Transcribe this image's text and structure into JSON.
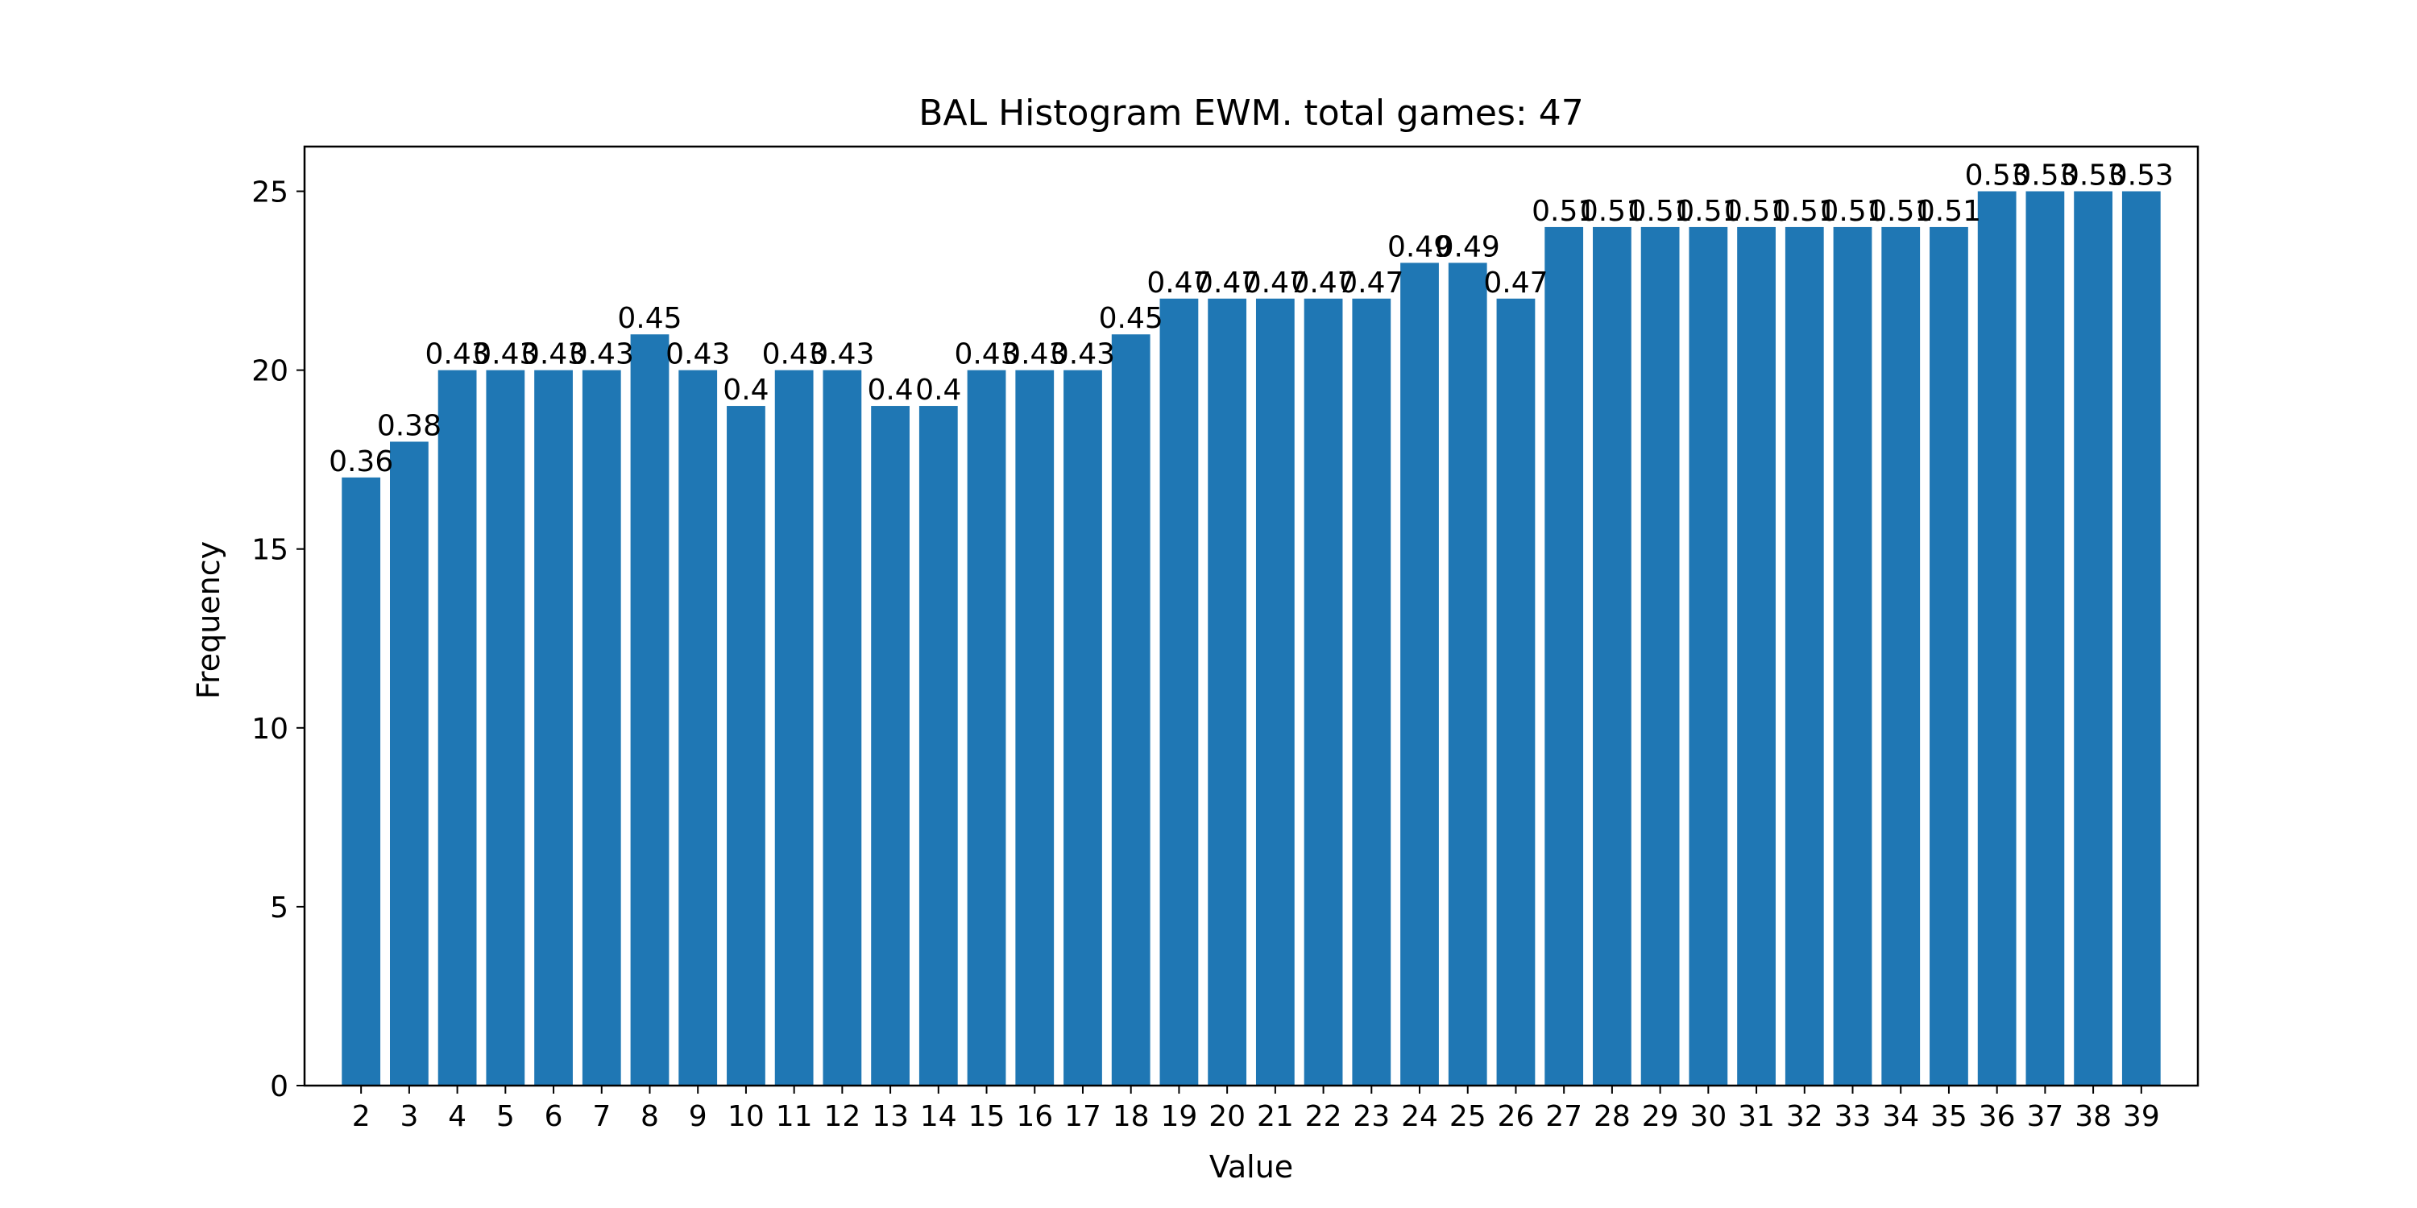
{
  "chart_data": {
    "type": "bar",
    "title": "BAL Histogram EWM. total games: 47",
    "xlabel": "Value",
    "ylabel": "Frequency",
    "categories": [
      "2",
      "3",
      "4",
      "5",
      "6",
      "7",
      "8",
      "9",
      "10",
      "11",
      "12",
      "13",
      "14",
      "15",
      "16",
      "17",
      "18",
      "19",
      "20",
      "21",
      "22",
      "23",
      "24",
      "25",
      "26",
      "27",
      "28",
      "29",
      "30",
      "31",
      "32",
      "33",
      "34",
      "35",
      "36",
      "37",
      "38",
      "39"
    ],
    "values": [
      17,
      18,
      20,
      20,
      20,
      20,
      21,
      20,
      19,
      20,
      20,
      19,
      19,
      20,
      20,
      20,
      21,
      22,
      22,
      22,
      22,
      22,
      23,
      23,
      22,
      24,
      24,
      24,
      24,
      24,
      24,
      24,
      24,
      24,
      25,
      25,
      25,
      25
    ],
    "bar_labels": [
      "0.36",
      "0.38",
      "0.43",
      "0.43",
      "0.43",
      "0.43",
      "0.45",
      "0.43",
      "0.4",
      "0.43",
      "0.43",
      "0.4",
      "0.4",
      "0.43",
      "0.43",
      "0.43",
      "0.45",
      "0.47",
      "0.47",
      "0.47",
      "0.47",
      "0.47",
      "0.49",
      "0.49",
      "0.47",
      "0.51",
      "0.51",
      "0.51",
      "0.51",
      "0.51",
      "0.51",
      "0.51",
      "0.51",
      "0.51",
      "0.53",
      "0.53",
      "0.53",
      "0.53"
    ],
    "yticks": [
      0,
      5,
      10,
      15,
      20,
      25
    ],
    "ylim": [
      0,
      26.25
    ],
    "bar_color": "#1f77b4",
    "grid": false,
    "legend": false
  }
}
